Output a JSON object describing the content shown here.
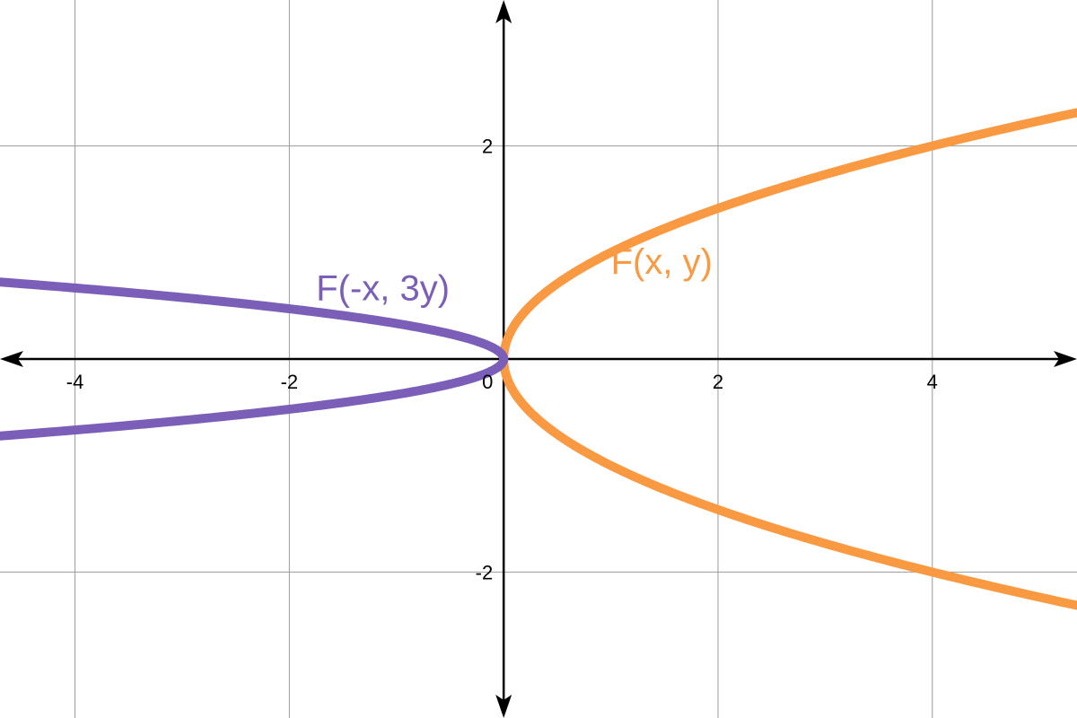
{
  "chart_data": {
    "type": "line",
    "title": "",
    "xlabel": "",
    "ylabel": "",
    "xlim": [
      -4.7,
      5.35
    ],
    "ylim": [
      -3.37,
      3.37
    ],
    "grid": true,
    "x_ticks": [
      {
        "value": -4,
        "label": "-4"
      },
      {
        "value": -2,
        "label": "-2"
      },
      {
        "value": 0,
        "label": "0"
      },
      {
        "value": 2,
        "label": "2"
      },
      {
        "value": 4,
        "label": "4"
      }
    ],
    "y_ticks": [
      {
        "value": 2,
        "label": "2"
      },
      {
        "value": -2,
        "label": "-2"
      }
    ],
    "series": [
      {
        "name": "F(x, y)",
        "label": "F(x, y)",
        "relation": "y^2 = x",
        "color": "#F99A43",
        "label_at": [
          1.0,
          0.8
        ],
        "points": [
          [
            5.35,
            2.313
          ],
          [
            4.0,
            2.0
          ],
          [
            3.0,
            1.732
          ],
          [
            2.0,
            1.414
          ],
          [
            1.0,
            1.0
          ],
          [
            0.5,
            0.707
          ],
          [
            0.25,
            0.5
          ],
          [
            0.1,
            0.316
          ],
          [
            0.03,
            0.173
          ],
          [
            0.0,
            0.0
          ],
          [
            0.03,
            -0.173
          ],
          [
            0.1,
            -0.316
          ],
          [
            0.25,
            -0.5
          ],
          [
            0.5,
            -0.707
          ],
          [
            1.0,
            -1.0
          ],
          [
            2.0,
            -1.414
          ],
          [
            3.0,
            -1.732
          ],
          [
            4.0,
            -2.0
          ],
          [
            5.35,
            -2.313
          ]
        ]
      },
      {
        "name": "F(-x, 3y)",
        "label": "F(-x, 3y)",
        "relation": "9y^2 = -x",
        "color": "#7A5EB7",
        "label_at": [
          -1.75,
          0.55
        ],
        "points": [
          [
            -4.7,
            0.723
          ],
          [
            -4.0,
            0.667
          ],
          [
            -3.0,
            0.577
          ],
          [
            -2.0,
            0.471
          ],
          [
            -1.0,
            0.333
          ],
          [
            -0.5,
            0.236
          ],
          [
            -0.2,
            0.149
          ],
          [
            -0.05,
            0.075
          ],
          [
            0.0,
            0.0
          ],
          [
            -0.05,
            -0.075
          ],
          [
            -0.2,
            -0.149
          ],
          [
            -0.5,
            -0.236
          ],
          [
            -1.0,
            -0.333
          ],
          [
            -2.0,
            -0.471
          ],
          [
            -3.0,
            -0.577
          ],
          [
            -4.0,
            -0.667
          ],
          [
            -4.7,
            -0.723
          ]
        ]
      }
    ]
  }
}
